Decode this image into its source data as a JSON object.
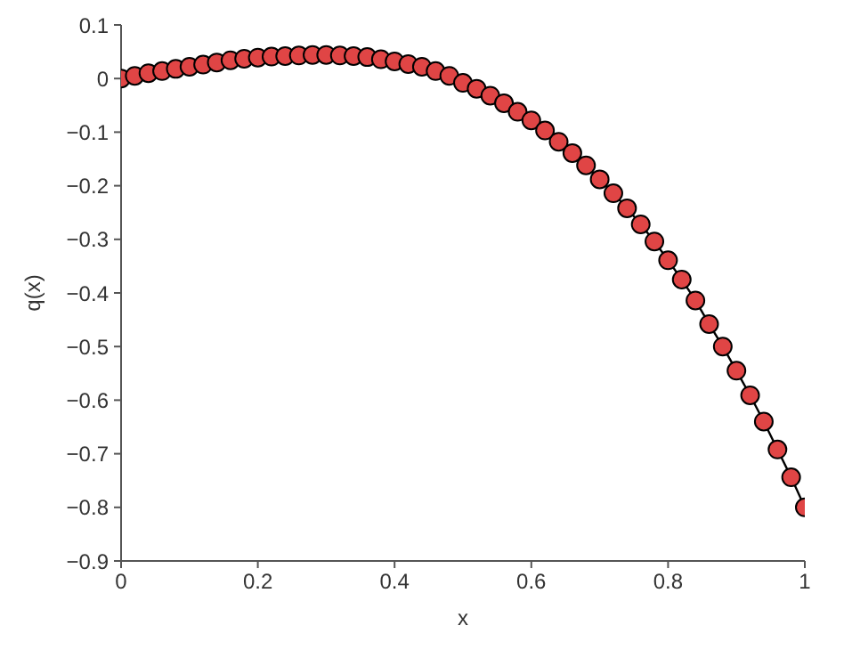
{
  "chart_data": {
    "type": "line",
    "xlabel": "x",
    "ylabel": "q(x)",
    "x": [
      0,
      0.02,
      0.04,
      0.06,
      0.08,
      0.1,
      0.12,
      0.14,
      0.16,
      0.18,
      0.2,
      0.22,
      0.24,
      0.26,
      0.28,
      0.3,
      0.32,
      0.34,
      0.36,
      0.38,
      0.4,
      0.42,
      0.44,
      0.46,
      0.48,
      0.5,
      0.52,
      0.54,
      0.56,
      0.58,
      0.6,
      0.62,
      0.64,
      0.66,
      0.68,
      0.7,
      0.72,
      0.74,
      0.76,
      0.78,
      0.8,
      0.82,
      0.84,
      0.86,
      0.88,
      0.9,
      0.92,
      0.94,
      0.96,
      0.98,
      1
    ],
    "series": [
      {
        "color": "#e04545",
        "values": [
          0,
          0.005,
          0.01,
          0.014,
          0.018,
          0.022,
          0.026,
          0.03,
          0.034,
          0.037,
          0.039,
          0.041,
          0.042,
          0.043,
          0.044,
          0.044,
          0.043,
          0.042,
          0.04,
          0.036,
          0.032,
          0.027,
          0.022,
          0.014,
          0.005,
          -0.008,
          -0.019,
          -0.032,
          -0.046,
          -0.062,
          -0.078,
          -0.097,
          -0.118,
          -0.139,
          -0.162,
          -0.188,
          -0.214,
          -0.242,
          -0.272,
          -0.304,
          -0.339,
          -0.375,
          -0.414,
          -0.458,
          -0.5,
          -0.545,
          -0.591,
          -0.64,
          -0.692,
          -0.744,
          -0.8
        ]
      }
    ],
    "xlim": [
      0,
      1
    ],
    "xticks": [
      0,
      0.2,
      0.4,
      0.6,
      0.8,
      1
    ],
    "ylim": [
      -0.9,
      0.1
    ],
    "yticks": [
      -0.9,
      -0.8,
      -0.7,
      -0.6,
      -0.5,
      -0.4,
      -0.3,
      -0.2,
      -0.1,
      0,
      0.1
    ],
    "grid": false,
    "legend": false,
    "marker": "circle",
    "line_style": "solid"
  }
}
